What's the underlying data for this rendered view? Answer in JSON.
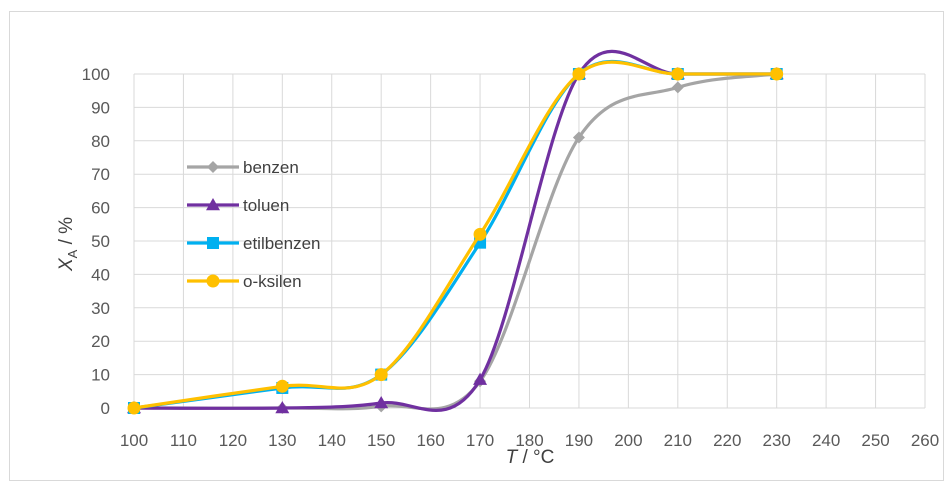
{
  "chart_data": {
    "type": "line",
    "smooth": true,
    "title": "",
    "xlabel": "T / °C",
    "ylabel": "XA / %",
    "xlim": [
      100,
      260
    ],
    "ylim": [
      0,
      100
    ],
    "xticks": [
      100,
      110,
      120,
      130,
      140,
      150,
      160,
      170,
      180,
      190,
      200,
      210,
      220,
      230,
      240,
      250,
      260
    ],
    "yticks": [
      0,
      10,
      20,
      30,
      40,
      50,
      60,
      70,
      80,
      90,
      100
    ],
    "grid": true,
    "legend_position": "left-center",
    "x": [
      100,
      130,
      150,
      170,
      190,
      210,
      230
    ],
    "series": [
      {
        "name": "benzen",
        "color": "#a5a5a5",
        "marker": "diamond",
        "values": [
          0,
          0,
          0.5,
          8,
          81,
          96,
          100
        ]
      },
      {
        "name": "toluen",
        "color": "#7030a0",
        "marker": "triangle",
        "values": [
          0,
          0,
          1.5,
          8.5,
          100,
          100,
          100
        ]
      },
      {
        "name": "etilbenzen",
        "color": "#00b0f0",
        "marker": "square",
        "values": [
          0,
          6,
          10,
          49.5,
          100,
          100,
          100
        ]
      },
      {
        "name": "o-ksilen",
        "color": "#ffc000",
        "marker": "circle",
        "values": [
          0,
          6.5,
          10,
          52,
          100,
          100,
          100
        ]
      }
    ]
  }
}
